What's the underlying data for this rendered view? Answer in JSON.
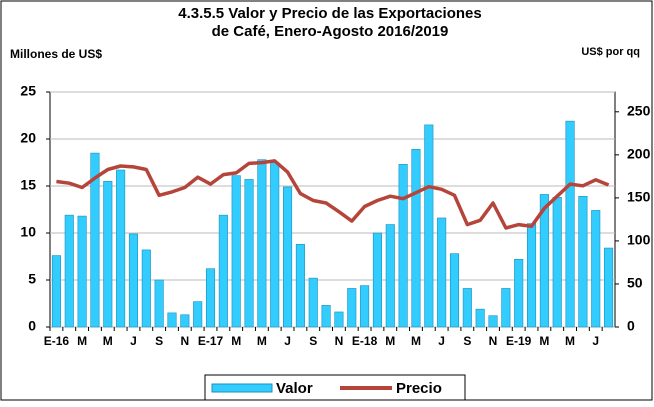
{
  "chart_data": {
    "type": "bar-line",
    "title": "4.3.5.5 Valor y Precio de las Exportaciones",
    "subtitle": "de Café, Enero-Agosto  2016/2019",
    "y_label": "Millones de US$",
    "y2_label": "US$ por qq",
    "categories": [
      "E-16",
      null,
      "M",
      null,
      "M",
      null,
      "J",
      null,
      "S",
      null,
      "N",
      null,
      "E-17",
      null,
      "M",
      null,
      "M",
      null,
      "J",
      null,
      "S",
      null,
      "N",
      null,
      "E-18",
      null,
      "M",
      null,
      "M",
      null,
      "J",
      null,
      "S",
      null,
      "N",
      null,
      "E-19",
      null,
      "M",
      null,
      "M",
      null,
      "J",
      null
    ],
    "series": [
      {
        "name": "Valor",
        "type": "bar",
        "color": "#33ccff",
        "values": [
          7.6,
          11.9,
          11.8,
          18.5,
          15.5,
          16.7,
          9.9,
          8.2,
          5.0,
          1.5,
          1.3,
          2.7,
          6.2,
          11.9,
          16.1,
          15.7,
          17.8,
          17.5,
          14.9,
          8.8,
          5.2,
          2.3,
          1.6,
          4.1,
          4.4,
          10.0,
          10.9,
          17.3,
          18.9,
          21.5,
          11.6,
          7.8,
          4.1,
          1.9,
          1.2,
          4.1,
          7.2,
          11.0,
          14.1,
          13.8,
          21.9,
          13.9,
          12.4,
          8.4
        ]
      },
      {
        "name": "Precio",
        "type": "line",
        "axis": "y2",
        "color": "#b5453a",
        "values": [
          169,
          167,
          162,
          173,
          183,
          187,
          186,
          183,
          153,
          157,
          162,
          174,
          166,
          177,
          179,
          190,
          191,
          193,
          180,
          155,
          147,
          144,
          134,
          123,
          140,
          147,
          152,
          149,
          156,
          163,
          160,
          153,
          119,
          124,
          144,
          115,
          119,
          117,
          138,
          152,
          166,
          164,
          171,
          165
        ]
      }
    ],
    "ylim": [
      0,
      25
    ],
    "yticks": [
      0,
      5,
      10,
      15,
      20,
      25
    ],
    "y2lim": [
      0,
      273
    ],
    "y2ticks": [
      0,
      50,
      100,
      150,
      200,
      250
    ],
    "grid": true,
    "legend": "bottom"
  }
}
